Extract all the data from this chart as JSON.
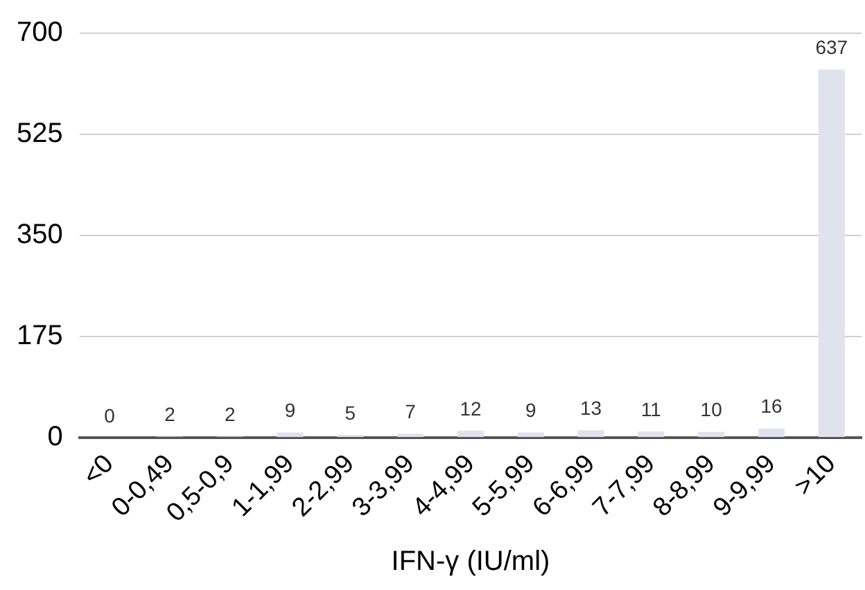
{
  "chart_data": {
    "type": "bar",
    "xlabel": "IFN-γ (IU/ml)",
    "categories": [
      "<0",
      "0-0,49",
      "0,5-0,9",
      "1-1,99",
      "2-2,99",
      "3-3,99",
      "4-4,99",
      "5-5,99",
      "6-6,99",
      "7-7,99",
      "8-8,99",
      "9-9,99",
      ">10"
    ],
    "values": [
      0,
      2,
      2,
      9,
      5,
      7,
      12,
      9,
      13,
      11,
      10,
      16,
      637
    ],
    "color": "#dfe3ee",
    "ylim": [
      0,
      700
    ],
    "yticks": [
      0,
      175,
      350,
      525,
      700
    ],
    "grid": "y",
    "data_labels": true
  }
}
